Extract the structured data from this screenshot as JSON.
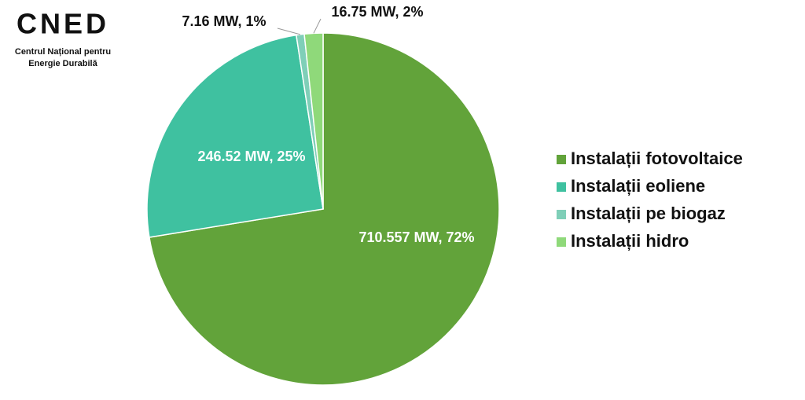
{
  "logo": {
    "mark": "CNED",
    "line1": "Centrul Național pentru",
    "line2": "Energie Durabilă"
  },
  "chart_data": {
    "type": "pie",
    "categories": [
      "Instalații fotovoltaice",
      "Instalații eoliene",
      "Instalații pe biogaz",
      "Instalații hidro"
    ],
    "values": [
      710.557,
      246.52,
      7.16,
      16.75
    ],
    "value_labels": [
      "710.557 MW, 72%",
      "246.52 MW, 25%",
      "7.16 MW, 1%",
      "16.75 MW, 2%"
    ],
    "colors": [
      "#62a33a",
      "#3fc1a0",
      "#7fcfb8",
      "#8fd97a"
    ],
    "legend": "right"
  }
}
